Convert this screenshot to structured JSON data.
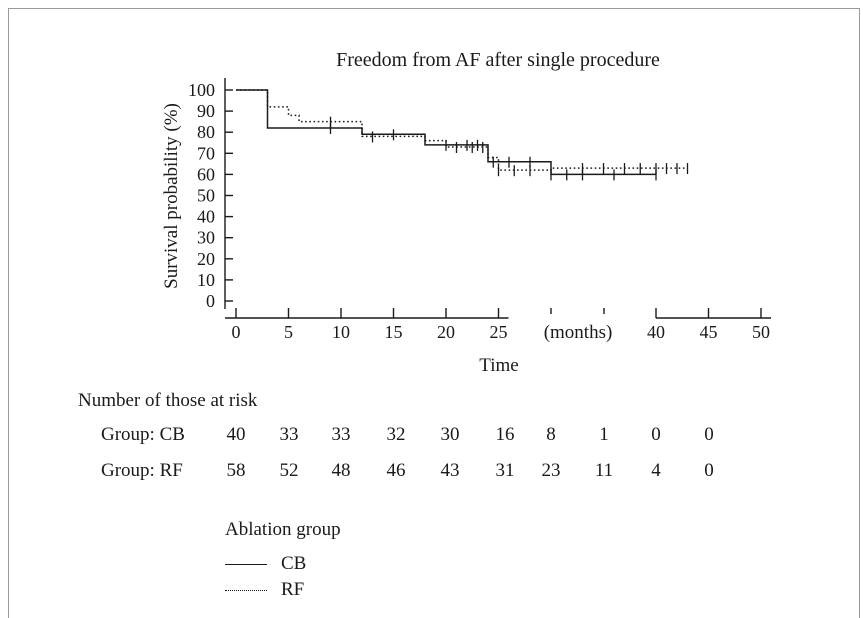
{
  "chart_data": {
    "type": "line",
    "subtype": "kaplan-meier",
    "title": "Freedom from AF after single procedure",
    "xlabel": "Time",
    "ylabel": "Survival probability (%)",
    "xunit_label": "(months)",
    "xlim": [
      0,
      50
    ],
    "ylim": [
      0,
      100
    ],
    "x_ticks": [
      0,
      5,
      10,
      15,
      20,
      25,
      40,
      45,
      50
    ],
    "y_ticks": [
      0,
      10,
      20,
      30,
      40,
      50,
      60,
      70,
      80,
      90,
      100
    ],
    "axis_break": [
      25,
      40
    ],
    "grid": false,
    "series": [
      {
        "name": "CB",
        "style": "solid",
        "steps": [
          [
            0,
            100
          ],
          [
            3,
            100
          ],
          [
            3,
            82
          ],
          [
            12,
            82
          ],
          [
            12,
            79
          ],
          [
            18,
            79
          ],
          [
            18,
            74
          ],
          [
            24,
            74
          ],
          [
            24,
            66
          ],
          [
            30,
            66
          ],
          [
            30,
            60
          ],
          [
            40,
            60
          ]
        ],
        "censored": [
          [
            9,
            82
          ],
          [
            15,
            79
          ],
          [
            20,
            74
          ],
          [
            22,
            74
          ],
          [
            23,
            74
          ],
          [
            24.5,
            66
          ],
          [
            26,
            66
          ],
          [
            28,
            66
          ],
          [
            30,
            60
          ],
          [
            31.5,
            60
          ],
          [
            33,
            60
          ],
          [
            36,
            60
          ],
          [
            40,
            60
          ]
        ]
      },
      {
        "name": "RF",
        "style": "dotted",
        "steps": [
          [
            0,
            100
          ],
          [
            3,
            100
          ],
          [
            3,
            92
          ],
          [
            5,
            92
          ],
          [
            5,
            88
          ],
          [
            6,
            88
          ],
          [
            6,
            85
          ],
          [
            12,
            85
          ],
          [
            12,
            78
          ],
          [
            18,
            78
          ],
          [
            18,
            76
          ],
          [
            20,
            76
          ],
          [
            20,
            73
          ],
          [
            24,
            73
          ],
          [
            24,
            68
          ],
          [
            25,
            68
          ],
          [
            25,
            62
          ],
          [
            30,
            62
          ],
          [
            30,
            63
          ],
          [
            43,
            63
          ]
        ],
        "censored": [
          [
            9,
            85
          ],
          [
            13,
            78
          ],
          [
            21,
            73
          ],
          [
            22.5,
            73
          ],
          [
            23.5,
            73
          ],
          [
            25,
            62
          ],
          [
            26.5,
            62
          ],
          [
            28,
            62
          ],
          [
            33,
            63
          ],
          [
            35,
            63
          ],
          [
            37,
            63
          ],
          [
            38.5,
            63
          ],
          [
            40,
            63
          ],
          [
            41,
            63
          ],
          [
            42,
            63
          ],
          [
            43,
            63
          ]
        ]
      }
    ]
  },
  "risk_table": {
    "heading": "Number of those at risk",
    "rows": [
      {
        "label": "Group: CB",
        "values": [
          "40",
          "33",
          "33",
          "32",
          "30",
          "16",
          "8",
          "1",
          "0",
          "0"
        ]
      },
      {
        "label": "Group: RF",
        "values": [
          "58",
          "52",
          "48",
          "46",
          "43",
          "31",
          "23",
          "11",
          "4",
          "0"
        ]
      }
    ]
  },
  "legend": {
    "title": "Ablation group",
    "items": [
      {
        "label": "CB",
        "style": "solid"
      },
      {
        "label": "RF",
        "style": "dotted"
      }
    ]
  },
  "colors": {
    "ink": "#1a1a1a",
    "frame": "#9a9a9a",
    "background": "#ffffff"
  }
}
